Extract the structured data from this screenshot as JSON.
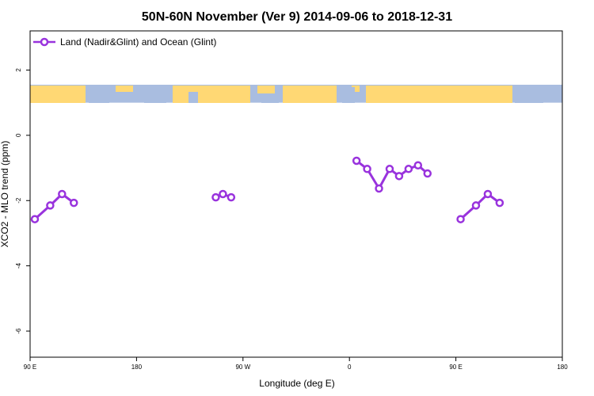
{
  "chart_data": {
    "type": "line",
    "title": "50N-60N November (Ver 9)   2014-09-06 to 2018-12-31",
    "xlabel": "Longitude (deg E)",
    "ylabel": "XCO2 - MLO trend (ppm)",
    "xlim": [
      90,
      540
    ],
    "ylim": [
      -6.8,
      3.2
    ],
    "x_ticks": [
      {
        "value": 90,
        "label": "90 E"
      },
      {
        "value": 180,
        "label": "180"
      },
      {
        "value": 270,
        "label": "90 W"
      },
      {
        "value": 360,
        "label": "0"
      },
      {
        "value": 450,
        "label": "90 E"
      },
      {
        "value": 540,
        "label": "180"
      }
    ],
    "y_ticks": [
      {
        "value": 2,
        "label": "2"
      },
      {
        "value": 0,
        "label": "0"
      },
      {
        "value": -2,
        "label": "-2"
      },
      {
        "value": -4,
        "label": "-4"
      },
      {
        "value": -6,
        "label": "-6"
      }
    ],
    "legend_position": "top-left",
    "color": "#9933dd",
    "series": [
      {
        "name": "Land (Nadir&Glint) and Ocean (Glint)",
        "segments": [
          [
            [
              94,
              -2.57
            ],
            [
              107,
              -2.15
            ],
            [
              117,
              -1.8
            ],
            [
              127,
              -2.07
            ]
          ],
          [
            [
              247,
              -1.9
            ],
            [
              253,
              -1.8
            ],
            [
              260,
              -1.9
            ]
          ],
          [
            [
              366,
              -0.78
            ],
            [
              375,
              -1.03
            ],
            [
              385,
              -1.63
            ],
            [
              394,
              -1.03
            ],
            [
              402,
              -1.25
            ],
            [
              410,
              -1.03
            ],
            [
              418,
              -0.92
            ],
            [
              426,
              -1.17
            ]
          ],
          [
            [
              454,
              -2.57
            ],
            [
              467,
              -2.15
            ],
            [
              477,
              -1.8
            ],
            [
              487,
              -2.07
            ]
          ]
        ]
      }
    ],
    "map_strip": {
      "y_range": [
        1.0,
        1.55
      ],
      "ocean_color": "#a9bde0",
      "land_color": "#ffd874"
    }
  }
}
